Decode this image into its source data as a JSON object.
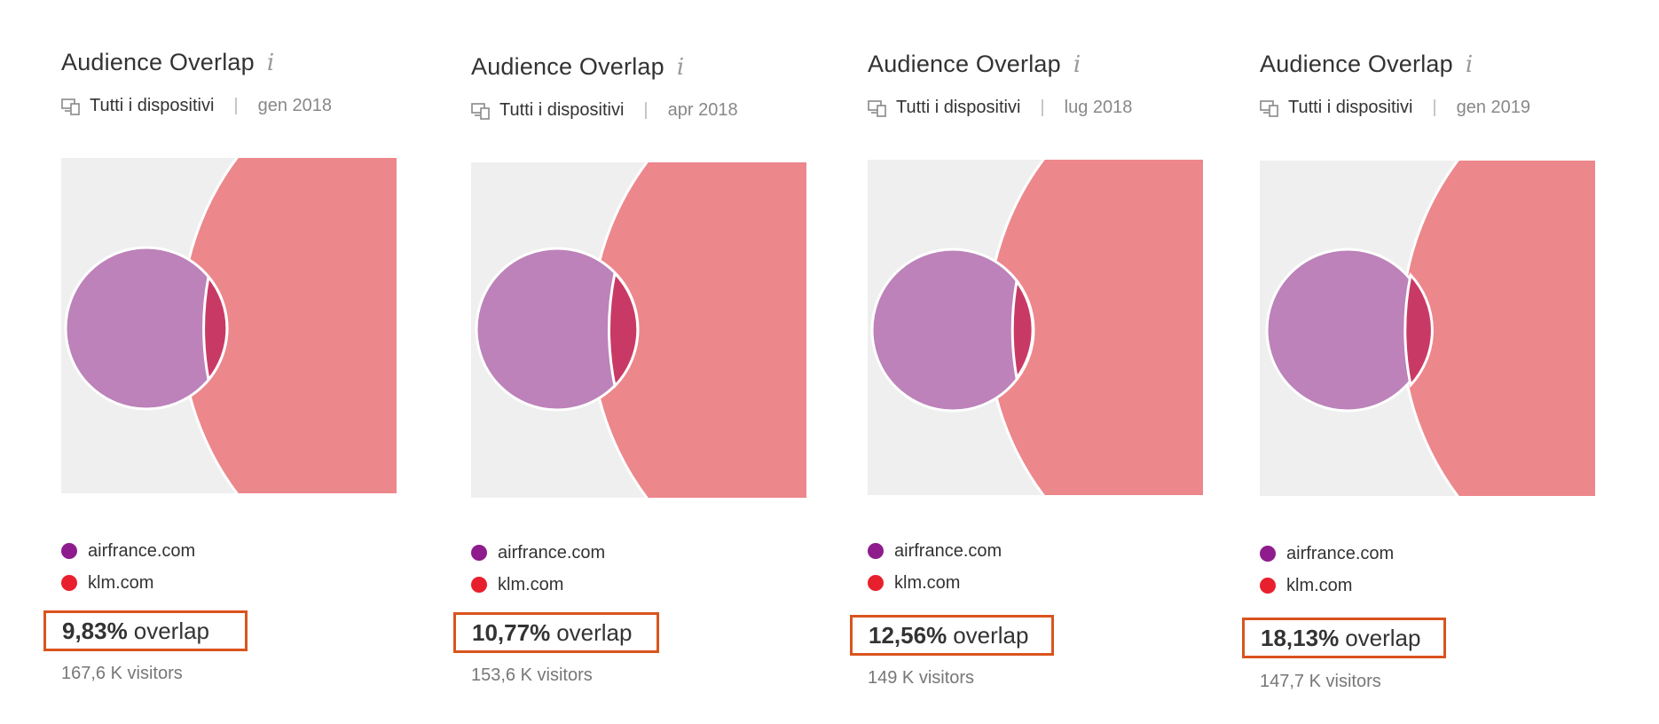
{
  "panels": [
    {
      "title": "Audience Overlap",
      "info": "i",
      "devices": "Tutti i dispositivi",
      "date": "gen 2018",
      "domains": [
        "airfrance.com",
        "klm.com"
      ],
      "overlap_pct": "9,83%",
      "overlap_word": "overlap",
      "visitors": "167,6 K visitors",
      "overlap_value": 9.83
    },
    {
      "title": "Audience Overlap",
      "info": "i",
      "devices": "Tutti i dispositivi",
      "date": "apr 2018",
      "domains": [
        "airfrance.com",
        "klm.com"
      ],
      "overlap_pct": "10,77%",
      "overlap_word": "overlap",
      "visitors": "153,6 K visitors",
      "overlap_value": 10.77
    },
    {
      "title": "Audience Overlap",
      "info": "i",
      "devices": "Tutti i dispositivi",
      "date": "lug 2018",
      "domains": [
        "airfrance.com",
        "klm.com"
      ],
      "overlap_pct": "12,56%",
      "overlap_word": "overlap",
      "visitors": "149 K visitors",
      "overlap_value": 12.56
    },
    {
      "title": "Audience Overlap",
      "info": "i",
      "devices": "Tutti i dispositivi",
      "date": "gen 2019",
      "domains": [
        "airfrance.com",
        "klm.com"
      ],
      "overlap_pct": "18,13%",
      "overlap_word": "overlap",
      "visitors": "147,7 K visitors",
      "overlap_value": 18.13
    }
  ],
  "colors": {
    "airfrance": "#8e1c8c",
    "klm": "#e8202e",
    "airfrance_fill": "#bc82b9",
    "klm_fill": "#ec878c",
    "intersection": "#c83a65",
    "venn_bg": "#efefef",
    "highlight_border": "#d9541e"
  },
  "icons": {
    "devices": "devices-icon",
    "info": "info-icon"
  }
}
